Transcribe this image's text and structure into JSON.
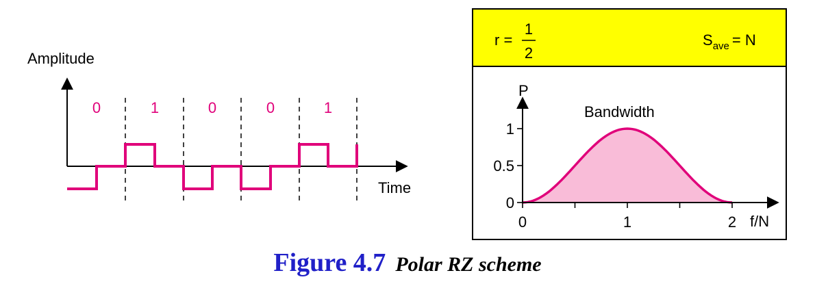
{
  "colors": {
    "signal": "#e0007a",
    "bits": "#e0007a",
    "header_bg": "#ffff00",
    "fill": "#f9bcd8",
    "caption": "#2020c8"
  },
  "left": {
    "y_axis_label": "Amplitude",
    "x_axis_label": "Time",
    "bits": [
      "0",
      "1",
      "0",
      "0",
      "1"
    ]
  },
  "right": {
    "header": {
      "r_label": "r =",
      "r_num": "1",
      "r_den": "2",
      "s_main": "S",
      "s_sub": "ave",
      "s_rhs": "= N"
    }
  },
  "chart_data": {
    "type": "area",
    "title": "Bandwidth",
    "xlabel": "f/N",
    "ylabel": "P",
    "xlim": [
      0,
      2
    ],
    "ylim": [
      0,
      1
    ],
    "x_ticks": [
      "0",
      "1",
      "2"
    ],
    "y_ticks": [
      "0",
      "0.5",
      "1"
    ],
    "series": [
      {
        "name": "Bandwidth",
        "x": [
          0,
          0.25,
          0.5,
          0.75,
          1,
          1.25,
          1.5,
          1.75,
          2
        ],
        "values": [
          0,
          0.15,
          0.5,
          0.85,
          1,
          0.85,
          0.5,
          0.15,
          0
        ]
      }
    ]
  },
  "caption": {
    "number": "Figure 4.7",
    "title": "Polar RZ scheme"
  }
}
